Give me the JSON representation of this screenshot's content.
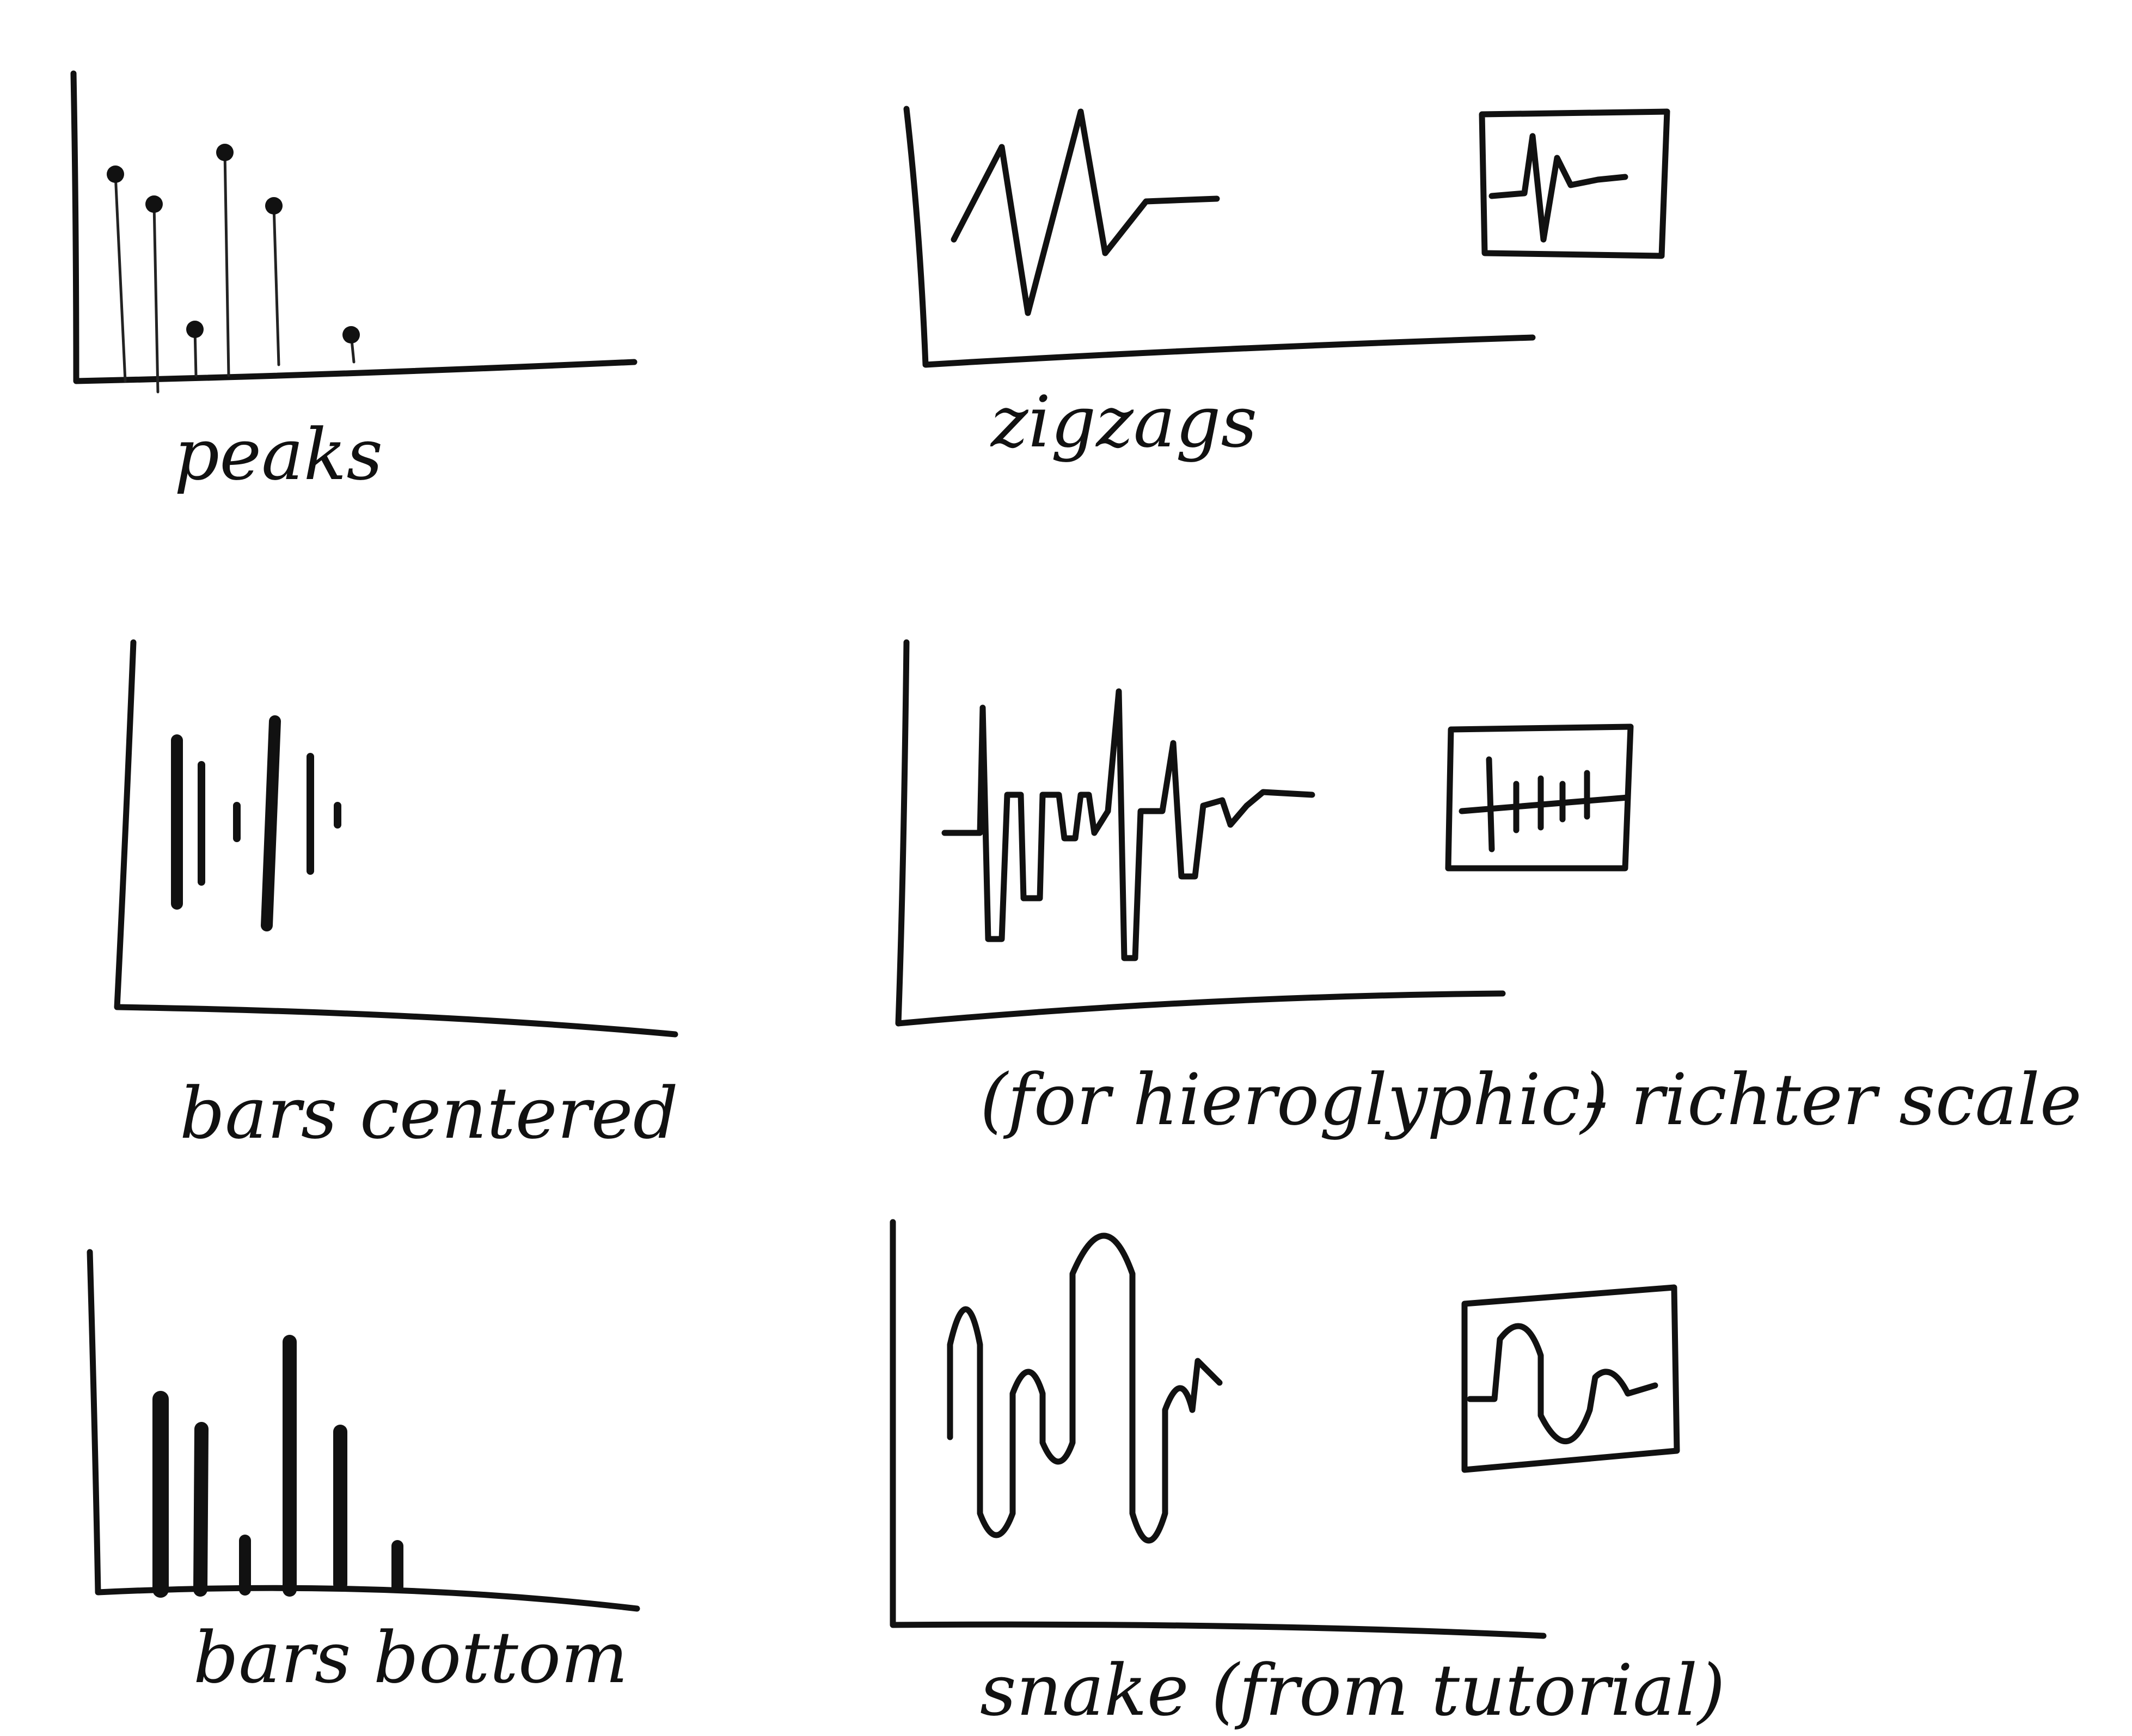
{
  "sketches": [
    {
      "id": "peaks",
      "caption": "peaks"
    },
    {
      "id": "zigzags",
      "caption": "zigzags"
    },
    {
      "id": "bars-centered",
      "caption": "bars centered"
    },
    {
      "id": "richter",
      "caption": "(for hieroglyphic)",
      "note": "- richter scale"
    },
    {
      "id": "bars-bottom",
      "caption": "bars bottom"
    },
    {
      "id": "snake",
      "caption": "snake (from tutorial)"
    }
  ],
  "colors": {
    "ink": "#111111",
    "paper": "#ffffff"
  }
}
